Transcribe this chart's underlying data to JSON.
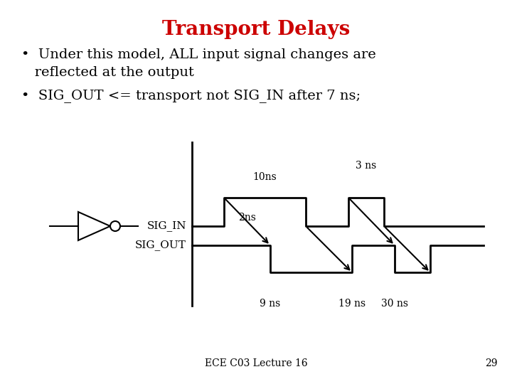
{
  "title": "Transport Delays",
  "title_color": "#CC0000",
  "title_fontsize": 20,
  "bullet1_line1": "•  Under this model, ALL input signal changes are",
  "bullet1_line2": "   reflected at the output",
  "bullet2": "•  SIG_OUT <= transport not SIG_IN after 7 ns;",
  "bullet_fontsize": 14,
  "footer": "ECE C03 Lecture 16",
  "footer_page": "29",
  "bg_color": "#FFFFFF",
  "signal_color": "#000000",
  "sig_in_label": "SIG_IN",
  "sig_out_label": "SIG_OUT",
  "label_10ns": "10ns",
  "label_3ns": "3 ns",
  "label_2ns": "2ns",
  "label_9ns": "9 ns",
  "label_19ns": "19 ns",
  "label_30ns": "30 ns"
}
